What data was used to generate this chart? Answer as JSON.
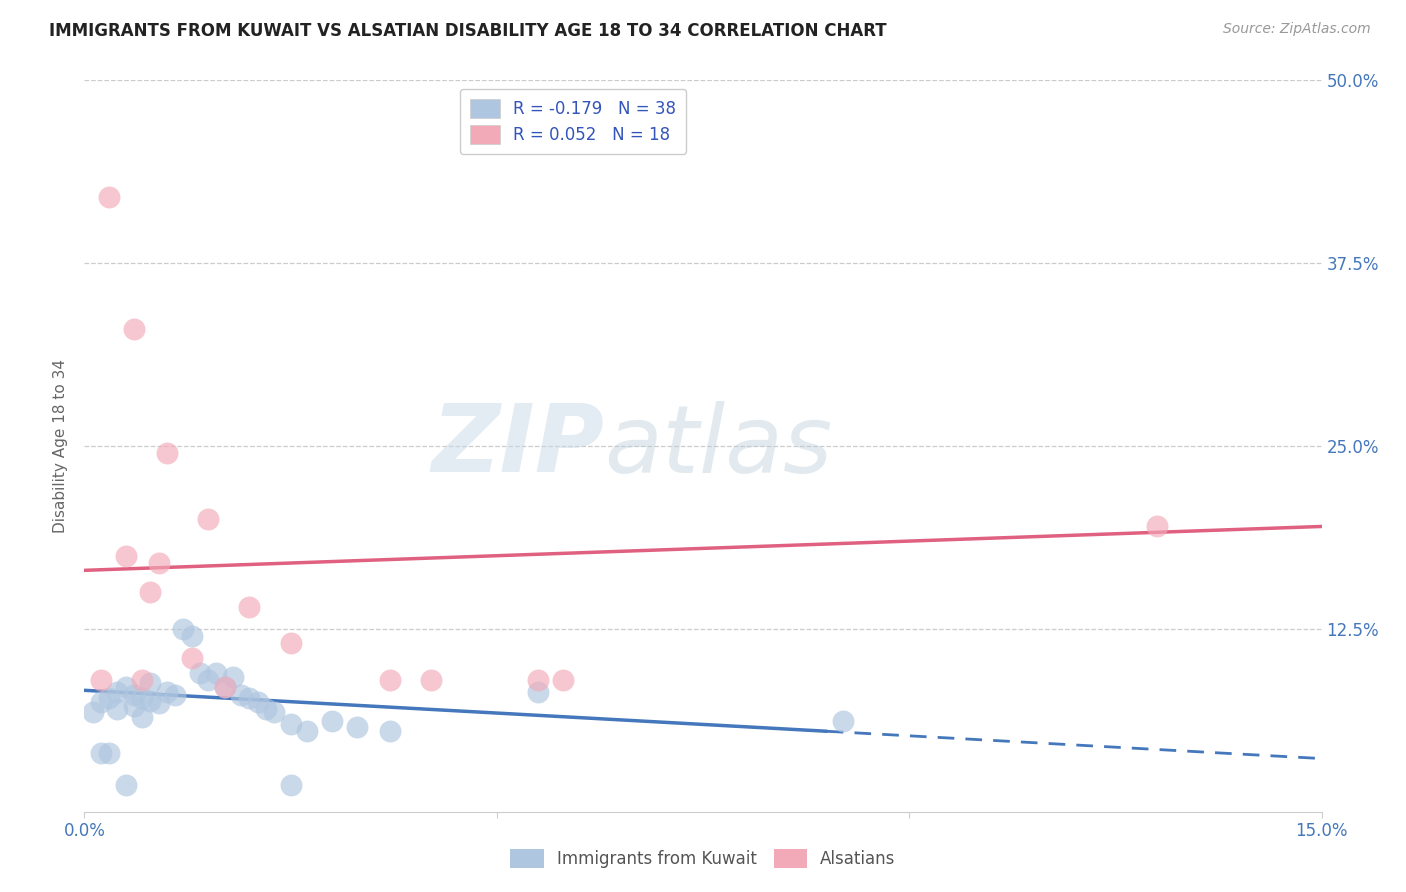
{
  "title": "IMMIGRANTS FROM KUWAIT VS ALSATIAN DISABILITY AGE 18 TO 34 CORRELATION CHART",
  "source": "Source: ZipAtlas.com",
  "ylabel": "Disability Age 18 to 34",
  "xlim": [
    0.0,
    0.15
  ],
  "ylim": [
    0.0,
    0.5
  ],
  "yticks": [
    0.0,
    0.125,
    0.25,
    0.375,
    0.5
  ],
  "yticklabels_right": [
    "",
    "12.5%",
    "25.0%",
    "37.5%",
    "50.0%"
  ],
  "xtick_positions": [
    0.0,
    0.15
  ],
  "xticklabels": [
    "0.0%",
    "15.0%"
  ],
  "blue_label": "Immigrants from Kuwait",
  "pink_label": "Alsatians",
  "blue_R": -0.179,
  "blue_N": 38,
  "pink_R": 0.052,
  "pink_N": 18,
  "blue_color": "#aec6df",
  "pink_color": "#f2aab8",
  "blue_line_color": "#4477bb",
  "pink_line_color": "#e06080",
  "watermark_zip": "ZIP",
  "watermark_atlas": "atlas",
  "blue_line_solid_end": 0.09,
  "blue_scatter_x": [
    0.001,
    0.002,
    0.003,
    0.004,
    0.004,
    0.005,
    0.006,
    0.006,
    0.007,
    0.007,
    0.008,
    0.008,
    0.009,
    0.01,
    0.011,
    0.012,
    0.013,
    0.014,
    0.015,
    0.016,
    0.017,
    0.018,
    0.019,
    0.02,
    0.021,
    0.022,
    0.023,
    0.025,
    0.027,
    0.03,
    0.033,
    0.037,
    0.055,
    0.092,
    0.002,
    0.003,
    0.005,
    0.025
  ],
  "blue_scatter_y": [
    0.068,
    0.075,
    0.078,
    0.082,
    0.07,
    0.085,
    0.08,
    0.072,
    0.078,
    0.065,
    0.088,
    0.076,
    0.074,
    0.082,
    0.08,
    0.125,
    0.12,
    0.095,
    0.09,
    0.095,
    0.085,
    0.092,
    0.08,
    0.078,
    0.075,
    0.07,
    0.068,
    0.06,
    0.055,
    0.062,
    0.058,
    0.055,
    0.082,
    0.062,
    0.04,
    0.04,
    0.018,
    0.018
  ],
  "pink_scatter_x": [
    0.003,
    0.005,
    0.006,
    0.007,
    0.008,
    0.009,
    0.01,
    0.013,
    0.015,
    0.017,
    0.02,
    0.025,
    0.037,
    0.042,
    0.055,
    0.058,
    0.002,
    0.13
  ],
  "pink_scatter_y": [
    0.42,
    0.175,
    0.33,
    0.09,
    0.15,
    0.17,
    0.245,
    0.105,
    0.2,
    0.085,
    0.14,
    0.115,
    0.09,
    0.09,
    0.09,
    0.09,
    0.09,
    0.195
  ]
}
